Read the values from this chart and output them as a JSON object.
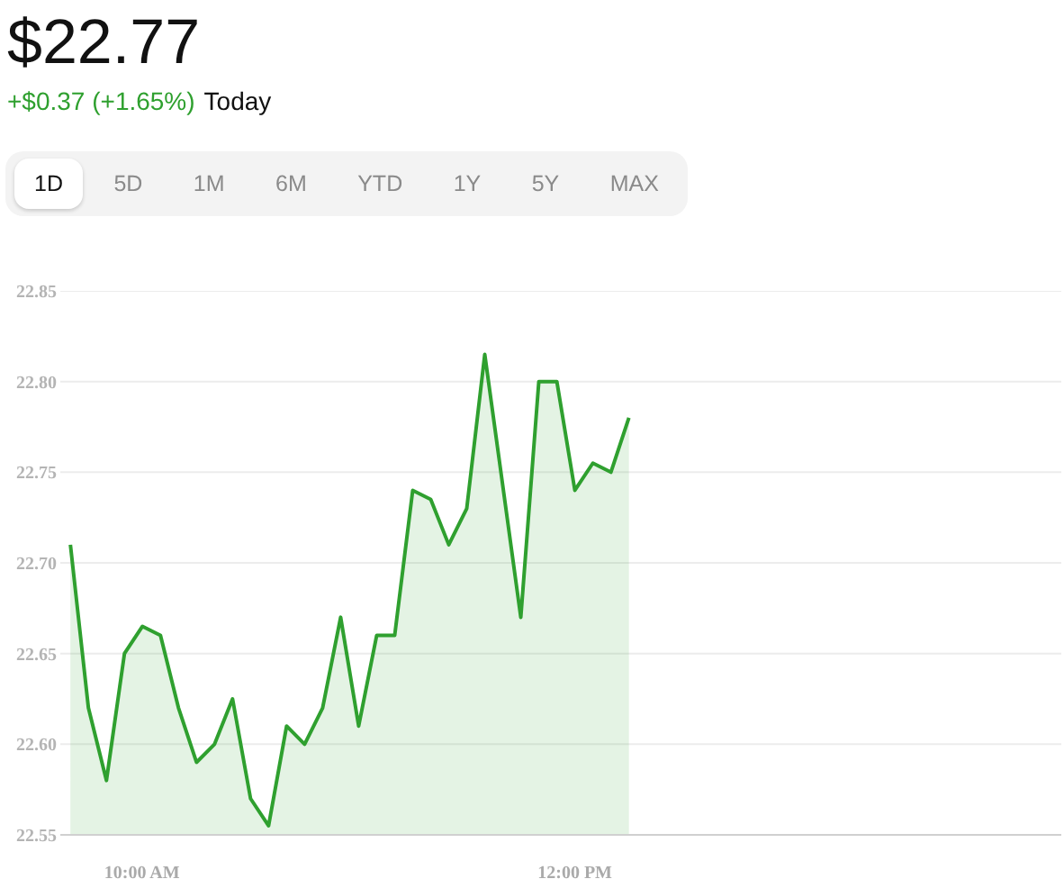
{
  "chart_data": {
    "type": "area",
    "title": "$22.77",
    "subtitle": "+$0.37 (+1.65%)",
    "annotations": [
      "Today",
      "1D",
      "5D",
      "1M",
      "6M",
      "YTD",
      "1Y",
      "5Y",
      "MAX"
    ],
    "x": [
      9.6667,
      9.75,
      9.8333,
      9.9167,
      10,
      10.0833,
      10.1667,
      10.25,
      10.3333,
      10.4167,
      10.5,
      10.5833,
      10.6667,
      10.75,
      10.8333,
      10.9167,
      11,
      11.0833,
      11.1667,
      11.25,
      11.3333,
      11.4167,
      11.5,
      11.5833,
      11.75,
      11.8333,
      11.9167,
      12,
      12.0833,
      12.1667,
      12.25
    ],
    "series": [
      {
        "color": "#2fa02f",
        "values": [
          22.71,
          22.62,
          22.58,
          22.65,
          22.665,
          22.66,
          22.62,
          22.59,
          22.6,
          22.625,
          22.57,
          22.555,
          22.61,
          22.6,
          22.62,
          22.67,
          22.61,
          22.66,
          22.66,
          22.74,
          22.735,
          22.71,
          22.73,
          22.815,
          22.67,
          22.8,
          22.8,
          22.74,
          22.755,
          22.75,
          22.78
        ]
      }
    ],
    "xlim": [
      9.62,
      14.25
    ],
    "xticks": [
      {
        "value": 10,
        "label": "10:00 AM"
      },
      {
        "value": 12,
        "label": "12:00 PM"
      }
    ],
    "ylim": [
      22.55,
      22.85
    ],
    "yticks": [
      22.55,
      {
        "value": 22.6,
        "label": "22.60"
      },
      22.65,
      {
        "value": 22.7,
        "label": "22.70"
      },
      22.75,
      {
        "value": 22.8,
        "label": "22.80"
      },
      22.85
    ],
    "grid": "y"
  }
}
